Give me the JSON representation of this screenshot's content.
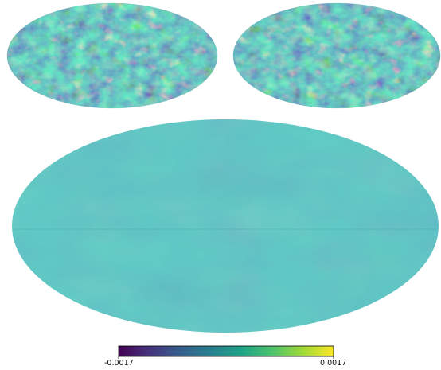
{
  "figure": {
    "projection": "mollweide",
    "colormap": "viridis",
    "colormap_stops": [
      "#440154",
      "#46327e",
      "#365c8d",
      "#277f8e",
      "#1fa187",
      "#4ac16d",
      "#a0da39",
      "#fde725"
    ],
    "panels": [
      {
        "name": "top-left-map",
        "field": "high-variance",
        "mean_level": 0.47
      },
      {
        "name": "top-right-map",
        "field": "high-variance",
        "mean_level": 0.47
      },
      {
        "name": "bottom-map",
        "field": "low-variance",
        "mean_level": 0.52
      }
    ],
    "colorbar": {
      "min_label": "-0.0017",
      "max_label": "0.0017"
    }
  }
}
